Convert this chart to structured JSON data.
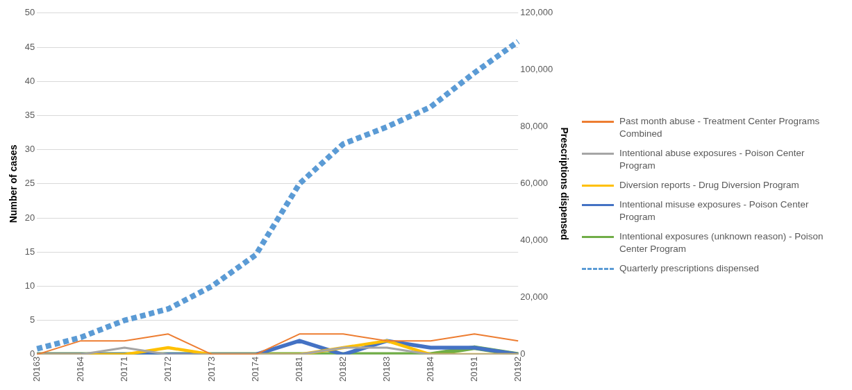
{
  "chart_data": {
    "type": "line",
    "xlabel": null,
    "ylabel": "Number of cases",
    "y2label": "Prescriptions dispensed",
    "categories": [
      "20163",
      "20164",
      "20171",
      "20172",
      "20173",
      "20174",
      "20181",
      "20182",
      "20183",
      "20184",
      "20191",
      "20192"
    ],
    "series": [
      {
        "name": "Past month abuse - Treatment Center Programs Combined",
        "color": "#ed7d31",
        "values": [
          0,
          2,
          2,
          3,
          0,
          0,
          3,
          3,
          2,
          2,
          3,
          2
        ]
      },
      {
        "name": "Intentional abuse exposures - Poison Center Program",
        "color": "#a5a5a5",
        "values": [
          0,
          0,
          1,
          0,
          0,
          0,
          0,
          1,
          1,
          0,
          0,
          0
        ]
      },
      {
        "name": "Diversion reports - Drug Diversion Program",
        "color": "#ffc000",
        "values": [
          0,
          0,
          0,
          1,
          0,
          0,
          0,
          1,
          2,
          0,
          0,
          0
        ]
      },
      {
        "name": "Intentional misuse exposures - Poison Center Program",
        "color": "#4472c4",
        "values": [
          0,
          0,
          0,
          0,
          0,
          0,
          2,
          0,
          2,
          1,
          1,
          0
        ]
      },
      {
        "name": "Intentional exposures (unknown reason) - Poison Center Program",
        "color": "#70ad47",
        "values": [
          0,
          0,
          0,
          0,
          0,
          0,
          0,
          0,
          0,
          0,
          1,
          0
        ]
      },
      {
        "name": "Quarterly prescriptions dispensed",
        "color": "#5b9bd5",
        "axis": "y2",
        "line_style": "dashed",
        "values": [
          2000,
          6000,
          12000,
          16000,
          24000,
          35000,
          60000,
          74000,
          80000,
          87000,
          99000,
          110000
        ]
      }
    ],
    "ylim": [
      0,
      50
    ],
    "yticks": [
      0,
      5,
      10,
      15,
      20,
      25,
      30,
      35,
      40,
      45,
      50
    ],
    "y2lim": [
      0,
      120000
    ],
    "y2ticks": [
      0,
      {
        "value": 20000,
        "label": "20,000"
      },
      {
        "value": 40000,
        "label": "40,000"
      },
      {
        "value": 60000,
        "label": "60,000"
      },
      {
        "value": 80000,
        "label": "80,000"
      },
      {
        "value": 100000,
        "label": "100,000"
      },
      {
        "value": 120000,
        "label": "120,000"
      }
    ],
    "grid": "y",
    "legend": "right",
    "marker": "none",
    "line_style": "solid"
  }
}
